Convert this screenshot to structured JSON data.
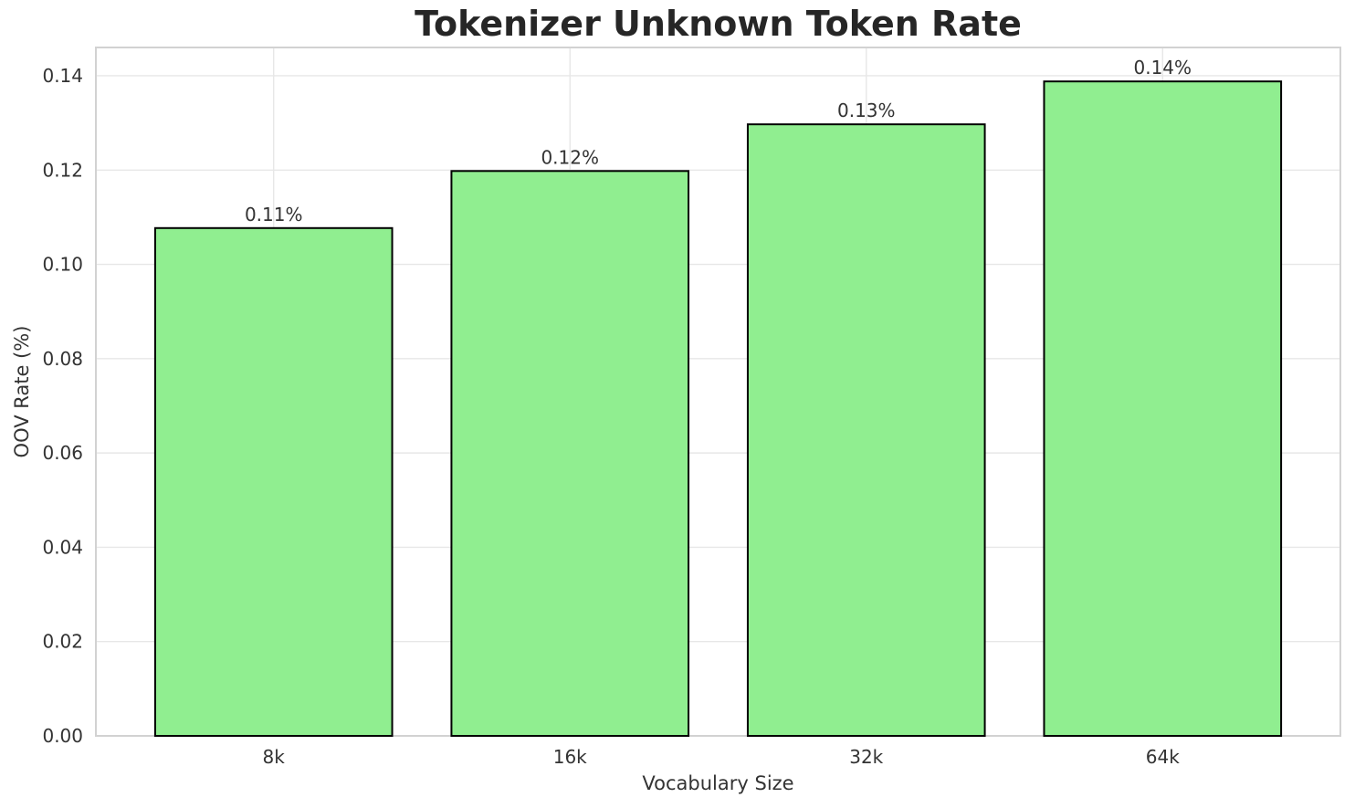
{
  "chart_data": {
    "type": "bar",
    "title": "Tokenizer Unknown Token Rate",
    "xlabel": "Vocabulary Size",
    "ylabel": "OOV Rate (%)",
    "categories": [
      "8k",
      "16k",
      "32k",
      "64k"
    ],
    "values": [
      0.1077,
      0.1198,
      0.1297,
      0.1388
    ],
    "bar_labels": [
      "0.11%",
      "0.12%",
      "0.13%",
      "0.14%"
    ],
    "ylim": [
      0,
      0.146
    ],
    "yticks": [
      0,
      0.02,
      0.04,
      0.06,
      0.08,
      0.1,
      0.12,
      0.14
    ],
    "ytick_labels": [
      "0.00",
      "0.02",
      "0.04",
      "0.06",
      "0.08",
      "0.10",
      "0.12",
      "0.14"
    ],
    "grid": true,
    "legend": "none",
    "bar_width_fraction": 0.8,
    "x_margin": 0.6,
    "colors": {
      "bar_fill": "#90EE90",
      "bar_edge": "#000000",
      "grid": "#e7e7e7",
      "spine": "#d2d2d2",
      "tick_text": "#333333",
      "bar_label_text": "#333333",
      "title_text": "#262626",
      "background": "#ffffff"
    }
  }
}
